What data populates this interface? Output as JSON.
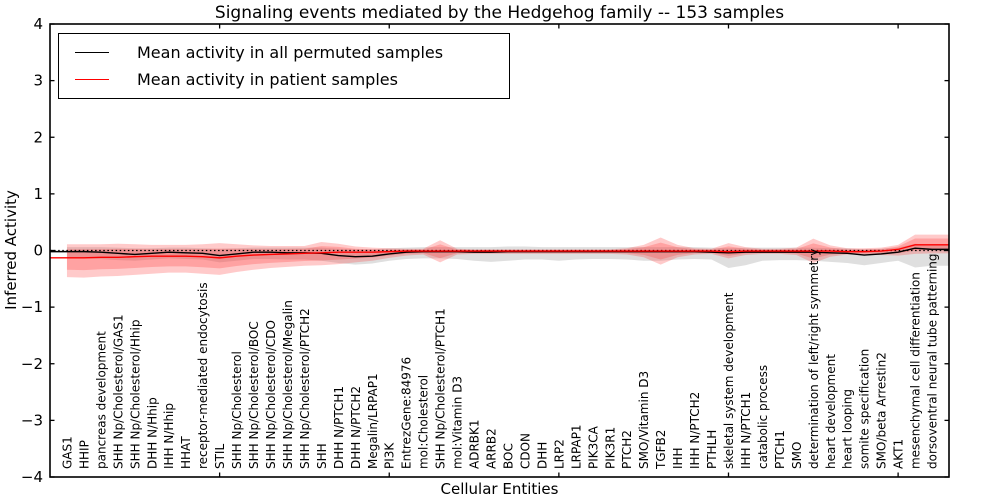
{
  "figure": {
    "title": "Signaling events mediated by the Hedgehog family -- 153 samples"
  },
  "legend": {
    "items": [
      {
        "label": "Mean activity in all permuted samples",
        "color": "#000000"
      },
      {
        "label": "Mean activity in patient samples",
        "color": "#ff0000"
      }
    ]
  },
  "chart_data": {
    "type": "line",
    "title": "Signaling events mediated by the Hedgehog family -- 153 samples",
    "xlabel": "Cellular Entities",
    "ylabel": "Inferred Activity",
    "ylim": [
      -4,
      4
    ],
    "xlim": [
      0,
      53
    ],
    "grid": false,
    "legend_position": "upper left",
    "yticks": [
      4,
      3,
      2,
      1,
      0,
      -1,
      -2,
      -3,
      -4
    ],
    "yticklabels": [
      "4",
      "3",
      "2",
      "1",
      "0",
      "−1",
      "−2",
      "−3",
      "−4"
    ],
    "xtick_positions": [
      10,
      20,
      30,
      40,
      50
    ],
    "zero_line": 0,
    "colors": {
      "permuted_line": "#000000",
      "patient_line": "#ff0000",
      "permuted_band": "#aaaaaa",
      "patient_band": "#ff3c3c",
      "axes": "#000000"
    },
    "categories": [
      "GAS1",
      "HHIP",
      "pancreas development",
      "SHH Np/Cholesterol/GAS1",
      "SHH Np/Cholesterol/Hhip",
      "DHH N/Hhip",
      "IHH N/Hhip",
      "HHAT",
      "receptor-mediated endocytosis",
      "STIL",
      "SHH Np/Cholesterol",
      "SHH Np/Cholesterol/BOC",
      "SHH Np/Cholesterol/CDO",
      "SHH Np/Cholesterol/Megalin",
      "SHH Np/Cholesterol/PTCH2",
      "SHH",
      "DHH N/PTCH1",
      "DHH N/PTCH2",
      "Megalin/LRPAP1",
      "PI3K",
      "EntrezGene:84976",
      "mol:Cholesterol",
      "SHH Np/Cholesterol/PTCH1",
      "mol:Vitamin D3",
      "ADRBK1",
      "ARRB2",
      "BOC",
      "CDON",
      "DHH",
      "LRP2",
      "LRPAP1",
      "PIK3CA",
      "PIK3R1",
      "PTCH2",
      "SMO/Vitamin D3",
      "TGFB2",
      "IHH",
      "IHH N/PTCH2",
      "PTHLH",
      "skeletal system development",
      "IHH N/PTCH1",
      "catabolic process",
      "PTCH1",
      "SMO",
      "determination of left/right symmetry",
      "heart development",
      "heart looping",
      "somite specification",
      "SMO/beta Arrestin2",
      "AKT1",
      "mesenchymal cell differentiation",
      "dorsoventral neural tube patterning"
    ],
    "series": [
      {
        "name": "Mean activity in all permuted samples",
        "color": "#000000",
        "values": [
          -0.02,
          -0.02,
          -0.03,
          -0.05,
          -0.07,
          -0.05,
          -0.03,
          -0.04,
          -0.05,
          -0.09,
          -0.06,
          -0.03,
          -0.03,
          -0.04,
          -0.04,
          -0.05,
          -0.09,
          -0.11,
          -0.1,
          -0.06,
          -0.03,
          -0.02,
          -0.02,
          -0.02,
          -0.03,
          -0.03,
          -0.02,
          -0.02,
          -0.02,
          -0.02,
          -0.02,
          -0.02,
          -0.02,
          -0.02,
          -0.02,
          -0.02,
          -0.02,
          -0.02,
          -0.03,
          -0.04,
          -0.03,
          -0.03,
          -0.03,
          -0.03,
          -0.03,
          -0.04,
          -0.05,
          -0.08,
          -0.06,
          -0.03,
          0.04,
          0.02
        ]
      },
      {
        "name": "Mean activity in patient samples",
        "color": "#ff0000",
        "values": [
          -0.13,
          -0.13,
          -0.12,
          -0.12,
          -0.11,
          -0.1,
          -0.1,
          -0.1,
          -0.11,
          -0.13,
          -0.1,
          -0.08,
          -0.07,
          -0.06,
          -0.05,
          -0.04,
          -0.03,
          -0.03,
          -0.03,
          -0.02,
          -0.01,
          -0.01,
          -0.01,
          -0.01,
          -0.01,
          -0.01,
          -0.01,
          -0.01,
          -0.01,
          -0.01,
          -0.01,
          -0.01,
          -0.01,
          -0.01,
          -0.01,
          -0.01,
          -0.01,
          -0.01,
          -0.01,
          -0.02,
          -0.01,
          -0.01,
          -0.01,
          -0.01,
          -0.01,
          -0.01,
          -0.02,
          -0.02,
          -0.01,
          0.02,
          0.1,
          0.1
        ]
      }
    ],
    "bands": [
      {
        "name": "permuted-std-band",
        "color": "#aaaaaa",
        "upper": [
          0.06,
          0.06,
          0.06,
          0.05,
          0.04,
          0.04,
          0.05,
          0.05,
          0.04,
          0.03,
          0.04,
          0.05,
          0.05,
          0.05,
          0.05,
          0.05,
          0.03,
          0.02,
          0.02,
          0.04,
          0.05,
          0.06,
          0.06,
          0.06,
          0.06,
          0.06,
          0.07,
          0.07,
          0.06,
          0.06,
          0.06,
          0.06,
          0.06,
          0.06,
          0.06,
          0.06,
          0.06,
          0.06,
          0.05,
          0.04,
          0.05,
          0.05,
          0.05,
          0.05,
          0.05,
          0.04,
          0.04,
          0.02,
          0.03,
          0.05,
          0.12,
          0.1
        ],
        "lower": [
          -0.14,
          -0.14,
          -0.15,
          -0.17,
          -0.18,
          -0.16,
          -0.14,
          -0.15,
          -0.16,
          -0.21,
          -0.18,
          -0.15,
          -0.15,
          -0.16,
          -0.16,
          -0.18,
          -0.22,
          -0.25,
          -0.23,
          -0.18,
          -0.15,
          -0.14,
          -0.14,
          -0.15,
          -0.18,
          -0.2,
          -0.18,
          -0.16,
          -0.16,
          -0.18,
          -0.16,
          -0.15,
          -0.15,
          -0.16,
          -0.18,
          -0.18,
          -0.16,
          -0.15,
          -0.16,
          -0.31,
          -0.26,
          -0.18,
          -0.17,
          -0.17,
          -0.18,
          -0.2,
          -0.22,
          -0.26,
          -0.22,
          -0.18,
          -0.3,
          -0.27
        ]
      },
      {
        "name": "patient-std-band",
        "color": "#ff3c3c",
        "upper": [
          0.11,
          0.11,
          0.11,
          0.12,
          0.11,
          0.1,
          0.1,
          0.1,
          0.11,
          0.13,
          0.11,
          0.09,
          0.08,
          0.08,
          0.08,
          0.15,
          0.12,
          0.07,
          0.05,
          0.04,
          0.03,
          0.03,
          0.18,
          0.03,
          0.02,
          0.02,
          0.02,
          0.02,
          0.02,
          0.02,
          0.02,
          0.02,
          0.02,
          0.04,
          0.1,
          0.23,
          0.1,
          0.04,
          0.03,
          0.13,
          0.06,
          0.03,
          0.03,
          0.05,
          0.21,
          0.09,
          0.04,
          0.04,
          0.05,
          0.1,
          0.28,
          0.28
        ],
        "lower": [
          -0.47,
          -0.48,
          -0.46,
          -0.45,
          -0.43,
          -0.41,
          -0.39,
          -0.39,
          -0.41,
          -0.43,
          -0.38,
          -0.34,
          -0.31,
          -0.29,
          -0.27,
          -0.26,
          -0.24,
          -0.21,
          -0.18,
          -0.13,
          -0.09,
          -0.07,
          -0.21,
          -0.07,
          -0.06,
          -0.06,
          -0.06,
          -0.06,
          -0.06,
          -0.06,
          -0.06,
          -0.06,
          -0.06,
          -0.07,
          -0.12,
          -0.25,
          -0.12,
          -0.07,
          -0.06,
          -0.14,
          -0.08,
          -0.06,
          -0.06,
          -0.08,
          -0.22,
          -0.11,
          -0.07,
          -0.07,
          -0.08,
          -0.09,
          -0.06,
          -0.05
        ]
      }
    ]
  }
}
